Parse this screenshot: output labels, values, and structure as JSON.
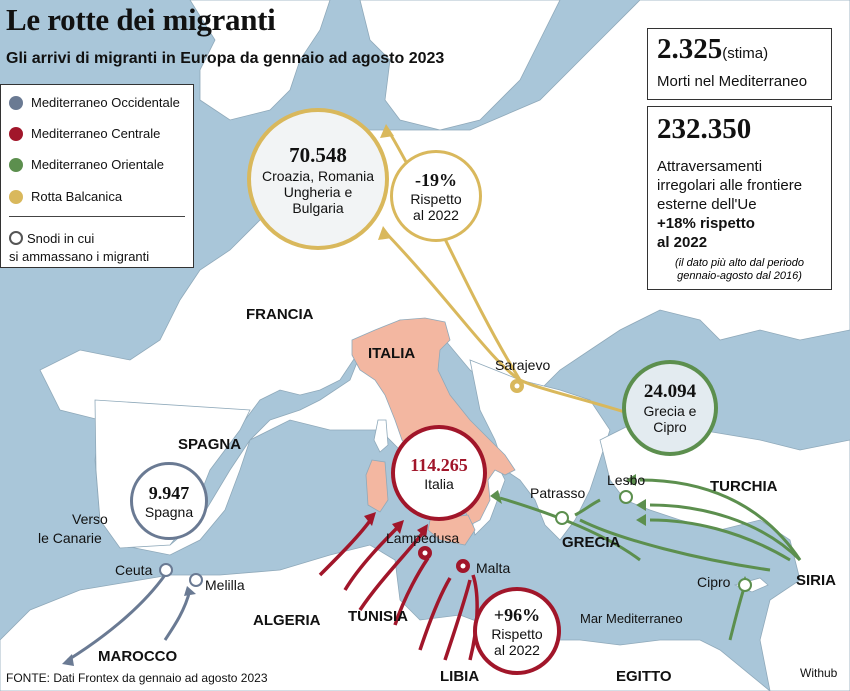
{
  "title": "Le rotte dei migranti",
  "subtitle": "Gli arrivi di migranti in Europa da gennaio ad agosto 2023",
  "legend": {
    "items": [
      {
        "label": "Mediterraneo Occidentale",
        "color": "#6a7a93"
      },
      {
        "label": "Mediterraneo Centrale",
        "color": "#a1162a"
      },
      {
        "label": "Mediterraneo Orientale",
        "color": "#5c8f4e"
      },
      {
        "label": "Rotta Balcanica",
        "color": "#d9b85c"
      }
    ],
    "node_line1": "Snodi in cui",
    "node_line2": "si ammassano i migranti"
  },
  "deaths": {
    "value": "2.325",
    "note": "(stima)",
    "label": "Morti nel Mediterraneo"
  },
  "crossings": {
    "value": "232.350",
    "line1": "Attraversamenti",
    "line2": "irregolari alle frontiere",
    "line3": "esterne dell'Ue",
    "change1": "+18% rispetto",
    "change2": "al 2022",
    "note1": "(il dato più alto dal periodo",
    "note2": "gennaio-agosto dal 2016)"
  },
  "circles": {
    "balkan": {
      "value": "70.548",
      "l1": "Croazia, Romania",
      "l2": "Ungheria e",
      "l3": "Bulgaria"
    },
    "balkan_change": {
      "value": "-19%",
      "l1": "Rispetto",
      "l2": "al 2022"
    },
    "east": {
      "value": "24.094",
      "l1": "Grecia e",
      "l2": "Cipro"
    },
    "central": {
      "value": "114.265",
      "l1": "Italia"
    },
    "central_change": {
      "value": "+96%",
      "l1": "Rispetto",
      "l2": "al 2022"
    },
    "west": {
      "value": "9.947",
      "l1": "Spagna"
    }
  },
  "countries": {
    "francia": "FRANCIA",
    "italia": "ITALIA",
    "spagna": "SPAGNA",
    "turchia": "TURCHIA",
    "grecia": "GRECIA",
    "siria": "SIRIA",
    "algeria": "ALGERIA",
    "tunisia": "TUNISIA",
    "marocco": "MAROCCO",
    "libia": "LIBIA",
    "egitto": "EGITTO"
  },
  "places": {
    "sarajevo": "Sarajevo",
    "lesbo": "Lesbo",
    "patrasso": "Patrasso",
    "lampedusa": "Lampedusa",
    "malta": "Malta",
    "ceuta": "Ceuta",
    "melilla": "Melilla",
    "cipro": "Cipro",
    "canarie1": "Verso",
    "canarie2": "le Canarie",
    "sea": "Mar Mediterraneo"
  },
  "footer": {
    "source": "FONTE: Dati Frontex da gennaio ad agosto 2023",
    "credit": "Withub"
  },
  "colors": {
    "sea": "#a9c6d9",
    "land": "#ffffff",
    "italy": "#f3b7a1",
    "west": "#6a7a93",
    "central": "#a1162a",
    "east": "#5c8f4e",
    "balkan": "#d9b85c"
  }
}
